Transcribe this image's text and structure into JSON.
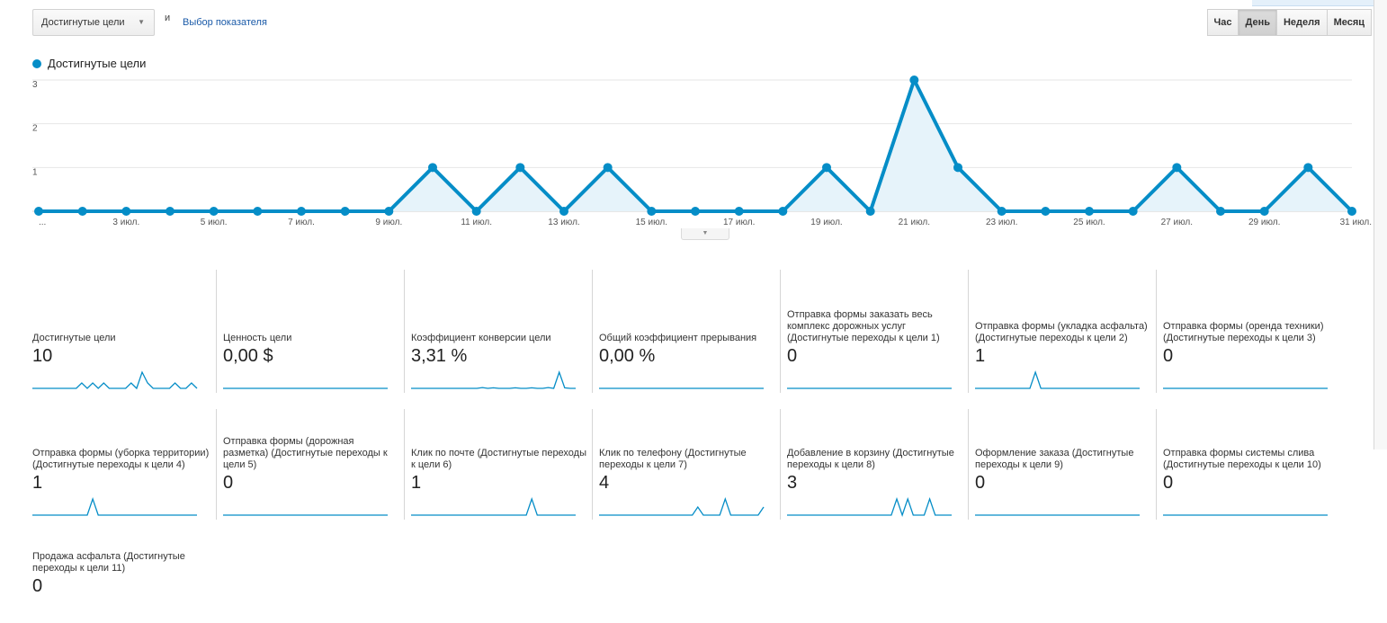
{
  "toolbar": {
    "metric_select": "Достигнутые цели",
    "conjunction": "и",
    "choose_metric": "Выбор показателя",
    "periods": [
      {
        "label": "Час",
        "active": false
      },
      {
        "label": "День",
        "active": true
      },
      {
        "label": "Неделя",
        "active": false
      },
      {
        "label": "Месяц",
        "active": false
      }
    ]
  },
  "legend": {
    "label": "Достигнутые цели",
    "color": "#058dc7"
  },
  "chart_data": {
    "type": "area",
    "x": [
      "1 июл.",
      "2 июл.",
      "3 июл.",
      "4 июл.",
      "5 июл.",
      "6 июл.",
      "7 июл.",
      "8 июл.",
      "9 июл.",
      "10 июл.",
      "11 июл.",
      "12 июл.",
      "13 июл.",
      "14 июл.",
      "15 июл.",
      "16 июл.",
      "17 июл.",
      "18 июл.",
      "19 июл.",
      "20 июл.",
      "21 июл.",
      "22 июл.",
      "23 июл.",
      "24 июл.",
      "25 июл.",
      "26 июл.",
      "27 июл.",
      "28 июл.",
      "29 июл.",
      "30 июл.",
      "31 июл."
    ],
    "series": [
      {
        "name": "Достигнутые цели",
        "values": [
          0,
          0,
          0,
          0,
          0,
          0,
          0,
          0,
          0,
          1,
          0,
          1,
          0,
          1,
          0,
          0,
          0,
          0,
          1,
          0,
          3,
          1,
          0,
          0,
          0,
          0,
          1,
          0,
          0,
          1,
          0
        ]
      }
    ],
    "x_tick_labels": [
      "...",
      "3 июл.",
      "5 июл.",
      "7 июл.",
      "9 июл.",
      "11 июл.",
      "13 июл.",
      "15 июл.",
      "17 июл.",
      "19 июл.",
      "21 июл.",
      "23 июл.",
      "25 июл.",
      "27 июл.",
      "29 июл.",
      "31 июл."
    ],
    "y_tick_labels": [
      "1",
      "2",
      "3"
    ],
    "ylim": [
      0,
      3
    ],
    "grid": true,
    "color": "#058dc7"
  },
  "scorecards": [
    {
      "label": "Достигнутые цели",
      "value": "10",
      "spark": [
        0,
        0,
        0,
        0,
        0,
        0,
        0,
        0,
        0,
        1,
        0,
        1,
        0,
        1,
        0,
        0,
        0,
        0,
        1,
        0,
        3,
        1,
        0,
        0,
        0,
        0,
        1,
        0,
        0,
        1,
        0
      ]
    },
    {
      "label": "Ценность цели",
      "value": "0,00 $",
      "spark": [
        0,
        0,
        0,
        0,
        0,
        0,
        0,
        0,
        0,
        0,
        0,
        0,
        0,
        0,
        0,
        0,
        0,
        0,
        0,
        0,
        0,
        0,
        0,
        0,
        0,
        0,
        0,
        0,
        0,
        0,
        0
      ]
    },
    {
      "label": "Коэффициент конверсии цели",
      "value": "3,31 %",
      "spark": [
        0,
        0,
        0,
        0,
        0,
        0,
        0,
        0,
        0,
        0,
        0,
        0,
        0,
        0.15,
        0,
        0.1,
        0,
        0,
        0,
        0.1,
        0,
        0,
        0.1,
        0,
        0,
        0.15,
        0,
        3,
        0.1,
        0,
        0
      ]
    },
    {
      "label": "Общий коэффициент прерывания",
      "value": "0,00 %",
      "spark": [
        0,
        0,
        0,
        0,
        0,
        0,
        0,
        0,
        0,
        0,
        0,
        0,
        0,
        0,
        0,
        0,
        0,
        0,
        0,
        0,
        0,
        0,
        0,
        0,
        0,
        0,
        0,
        0,
        0,
        0,
        0
      ]
    },
    {
      "label": "Отправка формы заказать весь комплекс дорожных услуг (Достигнутые переходы к цели 1)",
      "value": "0",
      "spark": [
        0,
        0,
        0,
        0,
        0,
        0,
        0,
        0,
        0,
        0,
        0,
        0,
        0,
        0,
        0,
        0,
        0,
        0,
        0,
        0,
        0,
        0,
        0,
        0,
        0,
        0,
        0,
        0,
        0,
        0,
        0
      ]
    },
    {
      "label": "Отправка формы (укладка асфальта) (Достигнутые переходы к цели 2)",
      "value": "1",
      "spark": [
        0,
        0,
        0,
        0,
        0,
        0,
        0,
        0,
        0,
        0,
        0,
        1,
        0,
        0,
        0,
        0,
        0,
        0,
        0,
        0,
        0,
        0,
        0,
        0,
        0,
        0,
        0,
        0,
        0,
        0,
        0
      ]
    },
    {
      "label": "Отправка формы (оренда техники) (Достигнутые переходы к цели 3)",
      "value": "0",
      "spark": [
        0,
        0,
        0,
        0,
        0,
        0,
        0,
        0,
        0,
        0,
        0,
        0,
        0,
        0,
        0,
        0,
        0,
        0,
        0,
        0,
        0,
        0,
        0,
        0,
        0,
        0,
        0,
        0,
        0,
        0,
        0
      ]
    },
    {
      "label": "Отправка формы (уборка территории) (Достигнутые переходы к цели 4)",
      "value": "1",
      "spark": [
        0,
        0,
        0,
        0,
        0,
        0,
        0,
        0,
        0,
        0,
        0,
        1,
        0,
        0,
        0,
        0,
        0,
        0,
        0,
        0,
        0,
        0,
        0,
        0,
        0,
        0,
        0,
        0,
        0,
        0,
        0
      ]
    },
    {
      "label": "Отправка формы (дорожная разметка) (Достигнутые переходы к цели 5)",
      "value": "0",
      "spark": [
        0,
        0,
        0,
        0,
        0,
        0,
        0,
        0,
        0,
        0,
        0,
        0,
        0,
        0,
        0,
        0,
        0,
        0,
        0,
        0,
        0,
        0,
        0,
        0,
        0,
        0,
        0,
        0,
        0,
        0,
        0
      ]
    },
    {
      "label": "Клик по почте (Достигнутые переходы к цели 6)",
      "value": "1",
      "spark": [
        0,
        0,
        0,
        0,
        0,
        0,
        0,
        0,
        0,
        0,
        0,
        0,
        0,
        0,
        0,
        0,
        0,
        0,
        0,
        0,
        0,
        0,
        1,
        0,
        0,
        0,
        0,
        0,
        0,
        0,
        0
      ]
    },
    {
      "label": "Клик по телефону (Достигнутые переходы к цели 7)",
      "value": "4",
      "spark": [
        0,
        0,
        0,
        0,
        0,
        0,
        0,
        0,
        0,
        0,
        0,
        0,
        0,
        0,
        0,
        0,
        0,
        0,
        0.5,
        0,
        0,
        0,
        0,
        1,
        0,
        0,
        0,
        0,
        0,
        0,
        0.5
      ]
    },
    {
      "label": "Добавление в корзину (Достигнутые переходы к цели 8)",
      "value": "3",
      "spark": [
        0,
        0,
        0,
        0,
        0,
        0,
        0,
        0,
        0,
        0,
        0,
        0,
        0,
        0,
        0,
        0,
        0,
        0,
        0,
        0,
        1,
        0,
        1,
        0,
        0,
        0,
        1,
        0,
        0,
        0,
        0
      ]
    },
    {
      "label": "Оформление заказа (Достигнутые переходы к цели 9)",
      "value": "0",
      "spark": [
        0,
        0,
        0,
        0,
        0,
        0,
        0,
        0,
        0,
        0,
        0,
        0,
        0,
        0,
        0,
        0,
        0,
        0,
        0,
        0,
        0,
        0,
        0,
        0,
        0,
        0,
        0,
        0,
        0,
        0,
        0
      ]
    },
    {
      "label": "Отправка формы системы слива (Достигнутые переходы к цели 10)",
      "value": "0",
      "spark": [
        0,
        0,
        0,
        0,
        0,
        0,
        0,
        0,
        0,
        0,
        0,
        0,
        0,
        0,
        0,
        0,
        0,
        0,
        0,
        0,
        0,
        0,
        0,
        0,
        0,
        0,
        0,
        0,
        0,
        0,
        0
      ]
    },
    {
      "label": "Продажа асфальта (Достигнутые переходы к цели 11)",
      "value": "0",
      "spark": null
    }
  ]
}
